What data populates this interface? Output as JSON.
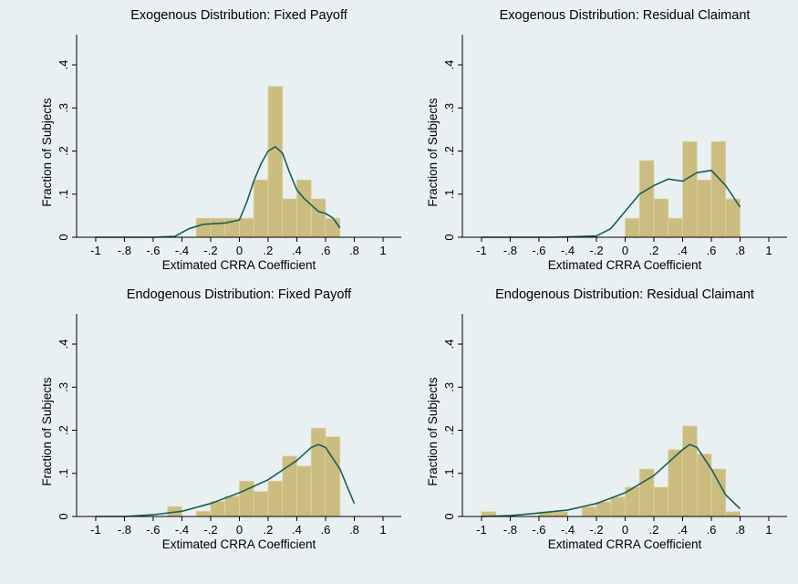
{
  "chart_data": [
    {
      "type": "histogram",
      "title": "Exogenous Distribution: Fixed Payoff",
      "xlabel": "Extimated CRRA Coefficient",
      "ylabel": "Fraction of Subjects",
      "bins": [
        -0.3,
        -0.2,
        -0.1,
        0,
        0.1,
        0.2,
        0.3,
        0.4,
        0.5,
        0.6,
        0.7
      ],
      "values": [
        0.044,
        0.044,
        0.044,
        0.044,
        0.133,
        0.35,
        0.089,
        0.133,
        0.089,
        0.044
      ],
      "color": "#cbbd7f",
      "density": {
        "x": [
          -1,
          -0.8,
          -0.6,
          -0.45,
          -0.35,
          -0.25,
          -0.1,
          0,
          0.05,
          0.1,
          0.15,
          0.2,
          0.25,
          0.3,
          0.35,
          0.4,
          0.45,
          0.5,
          0.55,
          0.6,
          0.65,
          0.7
        ],
        "y": [
          0,
          0,
          0,
          0.002,
          0.02,
          0.03,
          0.033,
          0.04,
          0.08,
          0.13,
          0.17,
          0.2,
          0.21,
          0.195,
          0.15,
          0.11,
          0.09,
          0.075,
          0.06,
          0.055,
          0.045,
          0.022
        ],
        "color": "#1b5e57"
      },
      "xlim": [
        -1.133,
        1.127
      ],
      "ylim": [
        0,
        0.47
      ],
      "xticks": [
        -1,
        {
          "value": -0.8,
          "label": "-.8"
        },
        {
          "value": -0.6,
          "label": "-.6"
        },
        {
          "value": -0.4,
          "label": "-.4"
        },
        {
          "value": -0.2,
          "label": "-.2"
        },
        0,
        {
          "value": 0.2,
          "label": ".2"
        },
        {
          "value": 0.4,
          "label": ".4"
        },
        {
          "value": 0.6,
          "label": ".6"
        },
        {
          "value": 0.8,
          "label": ".8"
        },
        1
      ],
      "yticks": [
        0,
        {
          "value": 0.1,
          "label": ".1"
        },
        {
          "value": 0.2,
          "label": ".2"
        },
        {
          "value": 0.3,
          "label": ".3"
        },
        {
          "value": 0.4,
          "label": ".4"
        }
      ]
    },
    {
      "type": "histogram",
      "title": "Exogenous Distribution: Residual Claimant",
      "xlabel": "Extimated CRRA Coefficient",
      "ylabel": "Fraction of Subjects",
      "bins": [
        0,
        0.1,
        0.2,
        0.3,
        0.4,
        0.5,
        0.6,
        0.7,
        0.8
      ],
      "values": [
        0.044,
        0.178,
        0.089,
        0.044,
        0.222,
        0.133,
        0.222,
        0.089
      ],
      "color": "#cbbd7f",
      "density": {
        "x": [
          -1,
          -0.5,
          -0.2,
          -0.1,
          0,
          0.1,
          0.2,
          0.3,
          0.4,
          0.5,
          0.6,
          0.7,
          0.8
        ],
        "y": [
          0,
          0,
          0.003,
          0.02,
          0.06,
          0.1,
          0.12,
          0.135,
          0.13,
          0.15,
          0.155,
          0.12,
          0.07
        ],
        "color": "#1b5e57"
      },
      "xlim": [
        -1.133,
        1.127
      ],
      "ylim": [
        0,
        0.47
      ],
      "xticks": [
        -1,
        {
          "value": -0.8,
          "label": "-.8"
        },
        {
          "value": -0.6,
          "label": "-.6"
        },
        {
          "value": -0.4,
          "label": "-.4"
        },
        {
          "value": -0.2,
          "label": "-.2"
        },
        0,
        {
          "value": 0.2,
          "label": ".2"
        },
        {
          "value": 0.4,
          "label": ".4"
        },
        {
          "value": 0.6,
          "label": ".6"
        },
        {
          "value": 0.8,
          "label": ".8"
        },
        1
      ],
      "yticks": [
        0,
        {
          "value": 0.1,
          "label": ".1"
        },
        {
          "value": 0.2,
          "label": ".2"
        },
        {
          "value": 0.3,
          "label": ".3"
        },
        {
          "value": 0.4,
          "label": ".4"
        }
      ]
    },
    {
      "type": "histogram",
      "title": "Endogenous Distribution: Fixed Payoff",
      "xlabel": "Extimated CRRA Coefficient",
      "ylabel": "Fraction of Subjects",
      "bins": [
        -0.6,
        -0.5,
        -0.4,
        -0.3,
        -0.2,
        -0.1,
        0,
        0.1,
        0.2,
        0.3,
        0.4,
        0.5,
        0.6,
        0.7
      ],
      "values": [
        0,
        0.023,
        0,
        0.012,
        0.035,
        0.047,
        0.082,
        0.058,
        0.082,
        0.14,
        0.117,
        0.205,
        0.185
      ],
      "color": "#cbbd7f",
      "density": {
        "x": [
          -1,
          -0.8,
          -0.6,
          -0.4,
          -0.2,
          0,
          0.2,
          0.4,
          0.5,
          0.55,
          0.6,
          0.7,
          0.8
        ],
        "y": [
          0,
          0,
          0.004,
          0.012,
          0.03,
          0.055,
          0.085,
          0.13,
          0.16,
          0.167,
          0.16,
          0.11,
          0.03
        ],
        "color": "#1b5e57"
      },
      "xlim": [
        -1.133,
        1.127
      ],
      "ylim": [
        0,
        0.47
      ],
      "xticks": [
        -1,
        {
          "value": -0.8,
          "label": "-.8"
        },
        {
          "value": -0.6,
          "label": "-.6"
        },
        {
          "value": -0.4,
          "label": "-.4"
        },
        {
          "value": -0.2,
          "label": "-.2"
        },
        0,
        {
          "value": 0.2,
          "label": ".2"
        },
        {
          "value": 0.4,
          "label": ".4"
        },
        {
          "value": 0.6,
          "label": ".6"
        },
        {
          "value": 0.8,
          "label": ".8"
        },
        1
      ],
      "yticks": [
        0,
        {
          "value": 0.1,
          "label": ".1"
        },
        {
          "value": 0.2,
          "label": ".2"
        },
        {
          "value": 0.3,
          "label": ".3"
        },
        {
          "value": 0.4,
          "label": ".4"
        }
      ]
    },
    {
      "type": "histogram",
      "title": "Endogenous Distribution: Residual Claimant",
      "xlabel": "Extimated CRRA Coefficient",
      "ylabel": "Fraction of Subjects",
      "bins": [
        -1,
        -0.9,
        -0.8,
        -0.7,
        -0.6,
        -0.5,
        -0.4,
        -0.3,
        -0.2,
        -0.1,
        0,
        0.1,
        0.2,
        0.3,
        0.4,
        0.5,
        0.6,
        0.7,
        0.8
      ],
      "values": [
        0.011,
        0,
        0,
        0,
        0.011,
        0.011,
        0,
        0.022,
        0.034,
        0.045,
        0.068,
        0.11,
        0.068,
        0.155,
        0.21,
        0.145,
        0.11,
        0.011
      ],
      "color": "#cbbd7f",
      "density": {
        "x": [
          -1,
          -0.8,
          -0.6,
          -0.4,
          -0.2,
          0,
          0.2,
          0.4,
          0.45,
          0.5,
          0.6,
          0.7,
          0.8
        ],
        "y": [
          0,
          0.002,
          0.008,
          0.015,
          0.03,
          0.055,
          0.095,
          0.155,
          0.167,
          0.16,
          0.11,
          0.05,
          0.018
        ],
        "color": "#1b5e57"
      },
      "xlim": [
        -1.133,
        1.127
      ],
      "ylim": [
        0,
        0.47
      ],
      "xticks": [
        -1,
        {
          "value": -0.8,
          "label": "-.8"
        },
        {
          "value": -0.6,
          "label": "-.6"
        },
        {
          "value": -0.4,
          "label": "-.4"
        },
        {
          "value": -0.2,
          "label": "-.2"
        },
        0,
        {
          "value": 0.2,
          "label": ".2"
        },
        {
          "value": 0.4,
          "label": ".4"
        },
        {
          "value": 0.6,
          "label": ".6"
        },
        {
          "value": 0.8,
          "label": ".8"
        },
        1
      ],
      "yticks": [
        0,
        {
          "value": 0.1,
          "label": ".1"
        },
        {
          "value": 0.2,
          "label": ".2"
        },
        {
          "value": 0.3,
          "label": ".3"
        },
        {
          "value": 0.4,
          "label": ".4"
        }
      ]
    }
  ]
}
